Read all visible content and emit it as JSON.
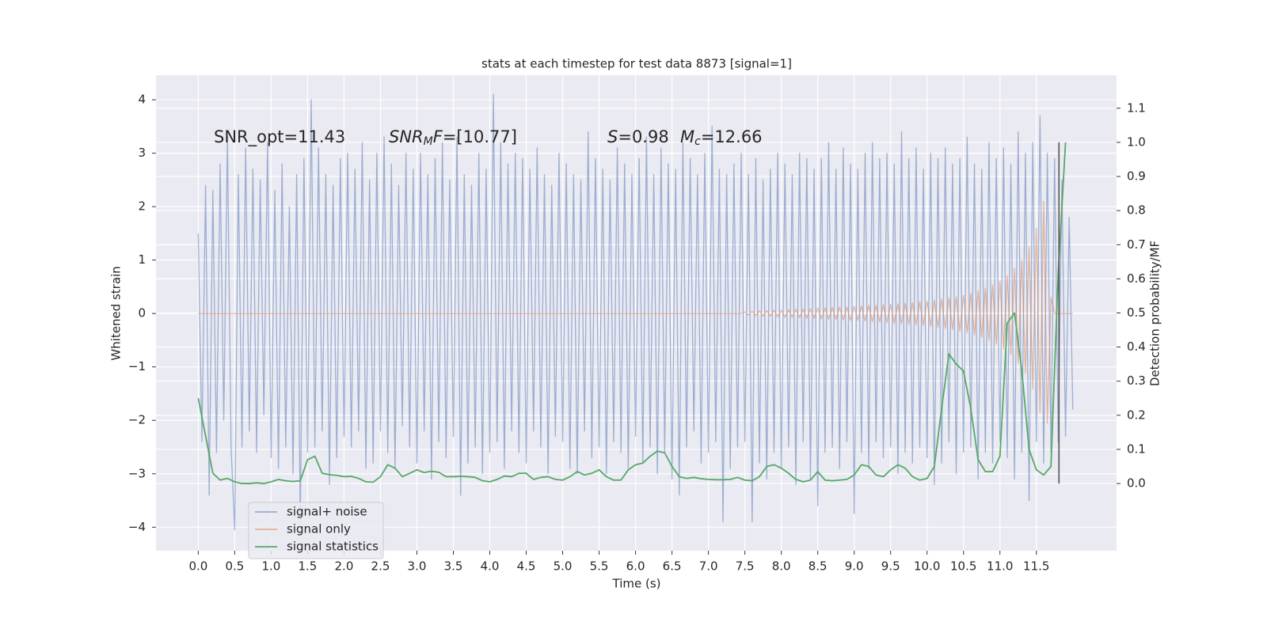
{
  "chart_data": {
    "type": "line",
    "title": "stats at each timestep for test data 8873 [signal=1]",
    "xlabel": "Time (s)",
    "ylabel": "Whitened strain",
    "y2label": "Detection probability/MF",
    "background": "#eaeaf2",
    "grid": true,
    "legend": "lower left",
    "annotations": [
      [
        {
          "text": "SNR_opt=11.43",
          "style": "normal"
        }
      ],
      [
        {
          "text": "SNR",
          "style": "italic"
        },
        {
          "text": "M",
          "style": "sub"
        },
        {
          "text": "F",
          "style": "italic"
        },
        {
          "text": "=[10.77]",
          "style": "normal"
        }
      ],
      [
        {
          "text": "S",
          "style": "italic"
        },
        {
          "text": "=0.98",
          "style": "normal"
        }
      ],
      [
        {
          "text": "M",
          "style": "italic"
        },
        {
          "text": "c",
          "style": "sub"
        },
        {
          "text": "=12.66",
          "style": "normal"
        }
      ]
    ],
    "xlim": [
      -0.58,
      12.6
    ],
    "ylim": [
      -4.44,
      4.46
    ],
    "y2lim": [
      -0.197,
      1.197
    ],
    "xticks": [
      {
        "value": 0,
        "label": "0.0"
      },
      {
        "value": 0.5,
        "label": "0.5"
      },
      {
        "value": 1,
        "label": "1.0"
      },
      {
        "value": 1.5,
        "label": "1.5"
      },
      {
        "value": 2,
        "label": "2.0"
      },
      {
        "value": 2.5,
        "label": "2.5"
      },
      {
        "value": 3,
        "label": "3.0"
      },
      {
        "value": 3.5,
        "label": "3.5"
      },
      {
        "value": 4,
        "label": "4.0"
      },
      {
        "value": 4.5,
        "label": "4.5"
      },
      {
        "value": 5,
        "label": "5.0"
      },
      {
        "value": 5.5,
        "label": "5.5"
      },
      {
        "value": 6,
        "label": "6.0"
      },
      {
        "value": 6.5,
        "label": "6.5"
      },
      {
        "value": 7,
        "label": "7.0"
      },
      {
        "value": 7.5,
        "label": "7.5"
      },
      {
        "value": 8,
        "label": "8.0"
      },
      {
        "value": 8.5,
        "label": "8.5"
      },
      {
        "value": 9,
        "label": "9.0"
      },
      {
        "value": 9.5,
        "label": "9.5"
      },
      {
        "value": 10,
        "label": "10.0"
      },
      {
        "value": 10.5,
        "label": "10.5"
      },
      {
        "value": 11,
        "label": "11.0"
      },
      {
        "value": 11.5,
        "label": "11.5"
      }
    ],
    "yticks": [
      {
        "value": -4,
        "label": "−4"
      },
      {
        "value": -3,
        "label": "−3"
      },
      {
        "value": -2,
        "label": "−2"
      },
      {
        "value": -1,
        "label": "−1"
      },
      0,
      1,
      2,
      3,
      4
    ],
    "y2ticks": [
      {
        "value": 0,
        "label": "0.0"
      },
      {
        "value": 0.1,
        "label": "0.1"
      },
      {
        "value": 0.2,
        "label": "0.2"
      },
      {
        "value": 0.3,
        "label": "0.3"
      },
      {
        "value": 0.4,
        "label": "0.4"
      },
      {
        "value": 0.5,
        "label": "0.5"
      },
      {
        "value": 0.6,
        "label": "0.6"
      },
      {
        "value": 0.7,
        "label": "0.7"
      },
      {
        "value": 0.8,
        "label": "0.8"
      },
      {
        "value": 0.9,
        "label": "0.9"
      },
      {
        "value": 1,
        "label": "1.0"
      },
      {
        "value": 1.1,
        "label": "1.1"
      }
    ],
    "x": [
      0,
      0.05,
      0.1,
      0.15,
      0.2,
      0.25,
      0.3,
      0.35,
      0.4,
      0.45,
      0.5,
      0.55,
      0.6,
      0.65,
      0.7,
      0.75,
      0.8,
      0.85,
      0.9,
      0.95,
      1,
      1.05,
      1.1,
      1.15,
      1.2,
      1.25,
      1.3,
      1.35,
      1.4,
      1.45,
      1.5,
      1.55,
      1.6,
      1.65,
      1.7,
      1.75,
      1.8,
      1.85,
      1.9,
      1.95,
      2,
      2.05,
      2.1,
      2.15,
      2.2,
      2.25,
      2.3,
      2.35,
      2.4,
      2.45,
      2.5,
      2.55,
      2.6,
      2.65,
      2.7,
      2.75,
      2.8,
      2.85,
      2.9,
      2.95,
      3,
      3.05,
      3.1,
      3.15,
      3.2,
      3.25,
      3.3,
      3.35,
      3.4,
      3.45,
      3.5,
      3.55,
      3.6,
      3.65,
      3.7,
      3.75,
      3.8,
      3.85,
      3.9,
      3.95,
      4,
      4.05,
      4.1,
      4.15,
      4.2,
      4.25,
      4.3,
      4.35,
      4.4,
      4.45,
      4.5,
      4.55,
      4.6,
      4.65,
      4.7,
      4.75,
      4.8,
      4.85,
      4.9,
      4.95,
      5,
      5.05,
      5.1,
      5.15,
      5.2,
      5.25,
      5.3,
      5.35,
      5.4,
      5.45,
      5.5,
      5.55,
      5.6,
      5.65,
      5.7,
      5.75,
      5.8,
      5.85,
      5.9,
      5.95,
      6,
      6.05,
      6.1,
      6.15,
      6.2,
      6.25,
      6.3,
      6.35,
      6.4,
      6.45,
      6.5,
      6.55,
      6.6,
      6.65,
      6.7,
      6.75,
      6.8,
      6.85,
      6.9,
      6.95,
      7,
      7.05,
      7.1,
      7.15,
      7.2,
      7.25,
      7.3,
      7.35,
      7.4,
      7.45,
      7.5,
      7.55,
      7.6,
      7.65,
      7.7,
      7.75,
      7.8,
      7.85,
      7.9,
      7.95,
      8,
      8.05,
      8.1,
      8.15,
      8.2,
      8.25,
      8.3,
      8.35,
      8.4,
      8.45,
      8.5,
      8.55,
      8.6,
      8.65,
      8.7,
      8.75,
      8.8,
      8.85,
      8.9,
      8.95,
      9,
      9.05,
      9.1,
      9.15,
      9.2,
      9.25,
      9.3,
      9.35,
      9.4,
      9.45,
      9.5,
      9.55,
      9.6,
      9.65,
      9.7,
      9.75,
      9.8,
      9.85,
      9.9,
      9.95,
      10,
      10.05,
      10.1,
      10.15,
      10.2,
      10.25,
      10.3,
      10.35,
      10.4,
      10.45,
      10.5,
      10.55,
      10.6,
      10.65,
      10.7,
      10.75,
      10.8,
      10.85,
      10.9,
      10.95,
      11,
      11.05,
      11.1,
      11.15,
      11.2,
      11.25,
      11.3,
      11.35,
      11.4,
      11.45,
      11.5,
      11.55,
      11.6,
      11.65,
      11.7,
      11.75,
      11.8,
      11.85,
      11.9,
      11.95,
      12
    ],
    "series": [
      {
        "name": "signal+ noise",
        "color": "#4c72b0",
        "opacity": 0.5,
        "axis": "y",
        "values": [
          1.5,
          -2.4,
          2.4,
          -3.4,
          2.3,
          -2.6,
          2.8,
          -2.0,
          3.3,
          -2.5,
          -4.05,
          2.6,
          -2.5,
          3.1,
          -2.2,
          2.7,
          -2.6,
          2.5,
          -1.9,
          3.2,
          -2.7,
          2.3,
          -2.9,
          2.8,
          -2.5,
          2.0,
          -3.0,
          2.6,
          -3.9,
          2.9,
          -2.6,
          4.0,
          -2.5,
          3.1,
          -2.2,
          2.6,
          -3.2,
          2.4,
          -2.7,
          2.9,
          -2.3,
          3.0,
          -2.5,
          2.7,
          -2.2,
          3.2,
          -2.9,
          2.5,
          -2.8,
          3.0,
          -2.2,
          3.3,
          -2.6,
          2.8,
          -2.9,
          2.4,
          -2.1,
          3.0,
          -2.5,
          2.7,
          -2.8,
          3.0,
          -2.2,
          2.6,
          -3.1,
          2.9,
          -2.4,
          3.2,
          -2.7,
          2.5,
          -2.3,
          3.3,
          -3.4,
          2.6,
          -2.8,
          2.4,
          -2.5,
          3.0,
          -3.0,
          2.7,
          -2.6,
          4.1,
          -2.4,
          3.2,
          -2.9,
          2.8,
          -2.2,
          3.0,
          -2.6,
          2.9,
          -2.8,
          2.7,
          -2.2,
          3.1,
          -2.5,
          2.6,
          -3.0,
          2.4,
          -2.3,
          3.0,
          -2.4,
          2.8,
          -2.9,
          2.6,
          -3.0,
          2.5,
          -2.2,
          3.4,
          -2.7,
          2.9,
          -2.5,
          2.7,
          -3.0,
          2.5,
          -2.4,
          3.1,
          -2.6,
          2.8,
          -2.9,
          2.6,
          -2.3,
          2.9,
          -2.8,
          3.3,
          -2.5,
          2.6,
          -3.0,
          3.1,
          -2.6,
          2.8,
          -3.1,
          2.7,
          -3.4,
          3.2,
          -2.5,
          2.9,
          -2.2,
          2.6,
          -2.8,
          3.0,
          -2.6,
          3.5,
          -2.4,
          2.7,
          -3.9,
          2.6,
          -2.9,
          2.8,
          -2.5,
          3.0,
          -2.4,
          2.6,
          -3.9,
          2.9,
          -2.8,
          2.5,
          -3.1,
          2.7,
          -2.6,
          3.0,
          -2.9,
          2.8,
          -2.5,
          2.6,
          -3.2,
          3.0,
          -2.4,
          2.9,
          -3.1,
          2.7,
          -3.6,
          2.9,
          -2.6,
          3.2,
          -2.5,
          2.7,
          -2.9,
          3.1,
          -2.4,
          2.8,
          -3.75,
          2.7,
          -2.6,
          3.0,
          -2.9,
          3.2,
          -2.4,
          2.9,
          -2.7,
          3.0,
          -2.5,
          2.8,
          -3.0,
          3.4,
          -2.6,
          2.9,
          -2.8,
          3.1,
          -2.5,
          2.7,
          -2.7,
          3.0,
          -3.2,
          2.9,
          -2.8,
          3.1,
          -2.4,
          2.8,
          -3.0,
          2.9,
          -2.6,
          3.3,
          -2.5,
          2.8,
          -3.1,
          2.7,
          -2.6,
          3.2,
          -2.8,
          2.9,
          -2.4,
          3.1,
          -2.7,
          2.8,
          -3.1,
          3.4,
          -2.6,
          3.0,
          -3.5,
          3.2,
          -2.4,
          3.7,
          -2.8,
          3.0,
          -2.6,
          2.9,
          -2.4,
          2.5,
          -2.3,
          1.8,
          -1.8
        ]
      },
      {
        "name": "signal only",
        "color": "#dd8452",
        "opacity": 0.55,
        "axis": "y",
        "values": [
          0,
          0,
          0,
          0,
          0,
          0,
          0,
          0,
          0,
          0,
          0,
          0,
          0,
          0,
          0,
          0,
          0,
          0,
          0,
          0,
          0,
          0,
          0,
          0,
          0,
          0,
          0,
          0,
          0,
          0,
          0,
          0,
          0,
          0,
          0,
          0,
          0,
          0,
          0,
          0,
          0,
          0,
          0,
          0,
          0,
          0,
          0,
          0,
          0,
          0,
          0,
          0,
          0,
          0,
          0,
          0,
          0,
          0,
          0,
          0,
          0,
          0,
          0,
          0,
          0,
          0,
          0,
          0,
          0,
          0,
          0,
          0,
          0,
          0,
          0,
          0,
          0,
          0,
          0,
          0,
          0,
          0,
          0,
          0,
          0,
          0,
          0,
          0,
          0,
          0,
          0,
          0,
          0,
          0,
          0,
          0,
          0,
          0,
          0,
          0,
          0,
          0,
          0,
          0,
          0,
          0,
          0,
          0,
          0,
          0,
          0,
          0,
          0,
          0,
          0,
          0,
          0,
          0,
          0,
          0,
          0,
          0,
          0,
          0,
          0,
          0,
          0,
          0,
          0,
          0,
          0,
          0,
          0,
          0,
          0,
          0,
          0,
          0,
          0,
          0,
          0,
          0,
          0,
          0,
          0,
          0,
          0,
          0,
          0,
          0,
          0.03,
          -0.03,
          0.04,
          -0.04,
          0.05,
          -0.05,
          0.05,
          -0.05,
          0.06,
          -0.06,
          0.06,
          -0.07,
          0.07,
          -0.07,
          0.08,
          -0.08,
          0.08,
          -0.09,
          0.09,
          -0.09,
          0.1,
          -0.1,
          0.1,
          -0.11,
          0.11,
          -0.11,
          0.12,
          -0.12,
          0.12,
          -0.13,
          0.13,
          -0.13,
          0.14,
          -0.14,
          0.15,
          -0.15,
          0.15,
          -0.16,
          0.16,
          -0.17,
          0.17,
          -0.18,
          0.18,
          -0.19,
          0.19,
          -0.2,
          0.2,
          -0.21,
          0.22,
          -0.22,
          0.23,
          -0.24,
          0.25,
          -0.26,
          0.27,
          -0.28,
          0.29,
          -0.3,
          0.31,
          -0.33,
          0.34,
          -0.36,
          0.38,
          -0.4,
          0.42,
          -0.44,
          0.47,
          -0.5,
          0.53,
          -0.57,
          0.61,
          -0.66,
          0.71,
          -0.77,
          0.84,
          -0.92,
          1.01,
          -1.12,
          1.25,
          -1.41,
          1.6,
          -1.85,
          2.1,
          -2.05,
          0.3,
          0,
          0,
          0,
          0,
          0,
          0
        ]
      },
      {
        "name": "signal statistics",
        "color": "#55a868",
        "opacity": 1,
        "axis": "y2",
        "x": [
          0,
          0.1,
          0.2,
          0.3,
          0.4,
          0.5,
          0.6,
          0.7,
          0.8,
          0.9,
          1,
          1.1,
          1.2,
          1.3,
          1.4,
          1.5,
          1.6,
          1.7,
          1.8,
          1.9,
          2,
          2.1,
          2.2,
          2.3,
          2.4,
          2.5,
          2.6,
          2.7,
          2.8,
          2.9,
          3,
          3.1,
          3.2,
          3.3,
          3.4,
          3.5,
          3.6,
          3.7,
          3.8,
          3.9,
          4,
          4.1,
          4.2,
          4.3,
          4.4,
          4.5,
          4.6,
          4.7,
          4.8,
          4.9,
          5,
          5.1,
          5.2,
          5.3,
          5.4,
          5.5,
          5.6,
          5.7,
          5.8,
          5.9,
          6,
          6.1,
          6.2,
          6.3,
          6.4,
          6.5,
          6.6,
          6.7,
          6.8,
          6.9,
          7,
          7.1,
          7.2,
          7.3,
          7.4,
          7.5,
          7.6,
          7.7,
          7.8,
          7.9,
          8,
          8.1,
          8.2,
          8.3,
          8.4,
          8.5,
          8.6,
          8.7,
          8.8,
          8.9,
          9,
          9.1,
          9.2,
          9.3,
          9.4,
          9.5,
          9.6,
          9.7,
          9.8,
          9.9,
          10,
          10.1,
          10.2,
          10.3,
          10.4,
          10.5,
          10.6,
          10.7,
          10.8,
          10.9,
          11,
          11.1,
          11.2,
          11.3,
          11.4,
          11.5,
          11.6,
          11.7,
          11.8,
          11.9
        ],
        "values": [
          0.25,
          0.14,
          0.03,
          0.01,
          0.015,
          0.005,
          0,
          0,
          0.002,
          0,
          0.005,
          0.012,
          0.008,
          0.006,
          0.008,
          0.07,
          0.08,
          0.03,
          0.026,
          0.024,
          0.02,
          0.021,
          0.015,
          0.005,
          0.004,
          0.02,
          0.055,
          0.045,
          0.02,
          0.03,
          0.04,
          0.032,
          0.036,
          0.033,
          0.02,
          0.02,
          0.021,
          0.02,
          0.018,
          0.008,
          0.005,
          0.012,
          0.022,
          0.02,
          0.03,
          0.03,
          0.012,
          0.018,
          0.02,
          0.012,
          0.01,
          0.02,
          0.035,
          0.025,
          0.03,
          0.04,
          0.02,
          0.01,
          0.01,
          0.04,
          0.055,
          0.06,
          0.08,
          0.095,
          0.09,
          0.05,
          0.02,
          0.015,
          0.018,
          0.014,
          0.012,
          0.011,
          0.011,
          0.012,
          0.018,
          0.01,
          0.008,
          0.02,
          0.05,
          0.055,
          0.045,
          0.03,
          0.012,
          0.005,
          0.01,
          0.035,
          0.01,
          0.008,
          0.01,
          0.012,
          0.025,
          0.055,
          0.05,
          0.025,
          0.02,
          0.04,
          0.055,
          0.045,
          0.02,
          0.01,
          0.015,
          0.05,
          0.22,
          0.38,
          0.35,
          0.33,
          0.22,
          0.07,
          0.035,
          0.035,
          0.08,
          0.47,
          0.5,
          0.33,
          0.1,
          0.04,
          0.025,
          0.05,
          0.62,
          1.0
        ]
      }
    ],
    "vline": {
      "x": 11.81,
      "ymin": 0,
      "ymax": 1.0,
      "axis": "y2",
      "color": "#555555"
    }
  }
}
